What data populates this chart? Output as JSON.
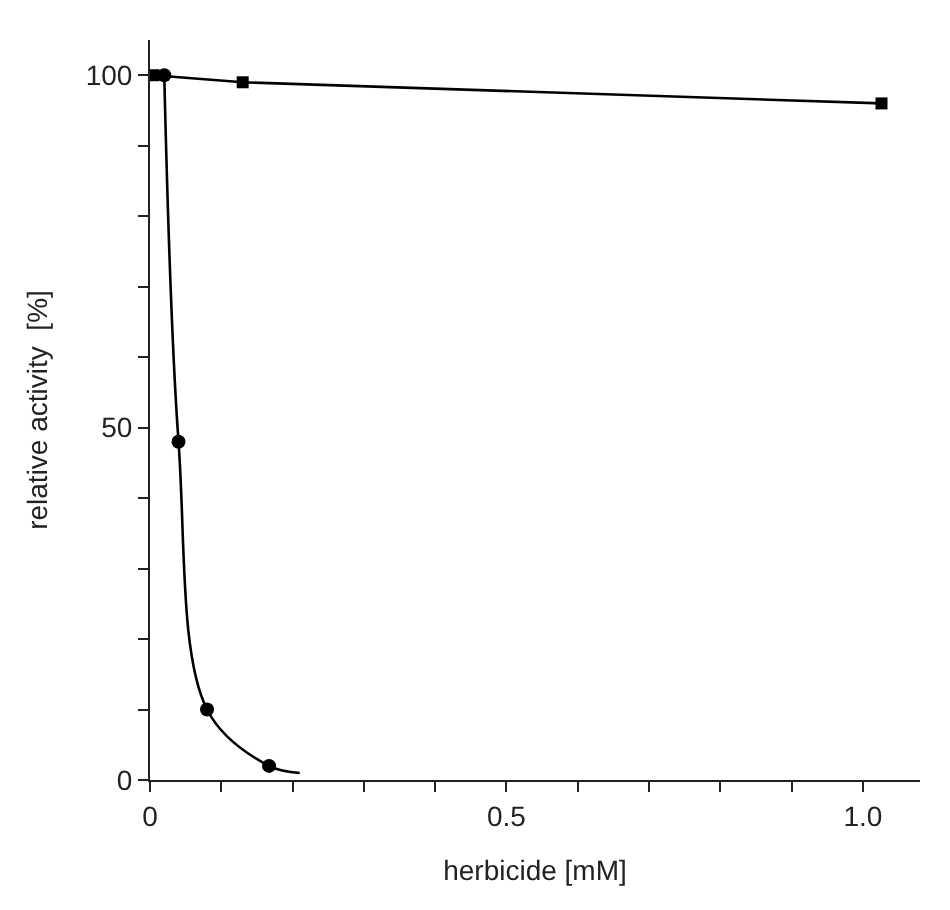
{
  "chart_data": {
    "type": "scatter",
    "xlabel": "herbicide [mM]",
    "ylabel": "relative activity  [%]",
    "xlim": [
      0,
      1.08
    ],
    "ylim": [
      0,
      105
    ],
    "xticks": [
      {
        "value": 0,
        "label": "0"
      },
      {
        "value": 0.1,
        "label": null
      },
      {
        "value": 0.2,
        "label": null
      },
      {
        "value": 0.3,
        "label": null
      },
      {
        "value": 0.4,
        "label": null
      },
      {
        "value": 0.5,
        "label": "0.5"
      },
      {
        "value": 0.6,
        "label": null
      },
      {
        "value": 0.7,
        "label": null
      },
      {
        "value": 0.8,
        "label": null
      },
      {
        "value": 0.9,
        "label": null
      },
      {
        "value": 1.0,
        "label": "1.0"
      }
    ],
    "yticks": [
      {
        "value": 0,
        "label": "0"
      },
      {
        "value": 10,
        "label": null
      },
      {
        "value": 20,
        "label": null
      },
      {
        "value": 30,
        "label": null
      },
      {
        "value": 40,
        "label": null
      },
      {
        "value": 50,
        "label": "50"
      },
      {
        "value": 60,
        "label": null
      },
      {
        "value": 70,
        "label": null
      },
      {
        "value": 80,
        "label": null
      },
      {
        "value": 90,
        "label": null
      },
      {
        "value": 100,
        "label": "100"
      }
    ],
    "series": [
      {
        "type": "line",
        "marker": "square",
        "color": "#000000",
        "x": [
          0.005,
          0.13,
          1.026
        ],
        "values": [
          100,
          99,
          96
        ]
      },
      {
        "marker": "circle",
        "color": "#000000",
        "x": [
          0.02,
          0.04,
          0.08,
          0.167
        ],
        "values": [
          100,
          48,
          10,
          2
        ]
      },
      {
        "type": "line",
        "marker": "none",
        "color": "#000000",
        "x": [
          0.02,
          0.04,
          0.08,
          0.167,
          0.21
        ],
        "values": [
          100,
          48,
          10,
          2,
          1
        ]
      }
    ]
  }
}
